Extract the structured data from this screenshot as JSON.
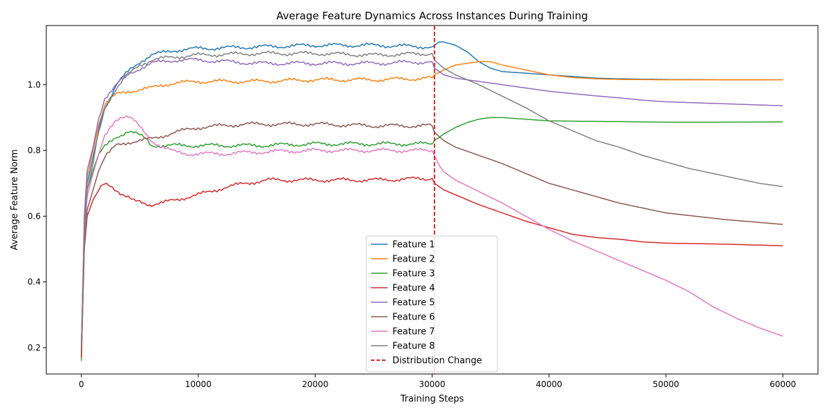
{
  "chart_data": {
    "type": "line",
    "title": "Average Feature Dynamics Across Instances During Training",
    "xlabel": "Training Steps",
    "ylabel": "Average Feature Norm",
    "xlim": [
      -3000,
      63000
    ],
    "ylim": [
      0.12,
      1.18
    ],
    "xticks": [
      0,
      10000,
      20000,
      30000,
      40000,
      50000,
      60000
    ],
    "yticks": [
      0.2,
      0.4,
      0.6,
      0.8,
      1.0
    ],
    "grid": false,
    "legend_position": "lower-center",
    "vline": {
      "x": 30200,
      "label": "Distribution Change",
      "color": "#d62728",
      "style": "dashed"
    },
    "series": [
      {
        "name": "Feature 1",
        "color": "#1f77b4",
        "x": [
          0,
          250,
          500,
          1000,
          1500,
          2000,
          3000,
          4000,
          5000,
          6000,
          8000,
          10000,
          15000,
          20000,
          25000,
          30000,
          30200,
          30600,
          31000,
          32000,
          33000,
          34000,
          35000,
          36000,
          38000,
          40000,
          42000,
          44000,
          46000,
          50000,
          55000,
          60000
        ],
        "y": [
          0.21,
          0.55,
          0.7,
          0.78,
          0.86,
          0.93,
          1.0,
          1.04,
          1.07,
          1.09,
          1.105,
          1.11,
          1.115,
          1.12,
          1.12,
          1.115,
          1.12,
          1.13,
          1.13,
          1.12,
          1.1,
          1.07,
          1.05,
          1.04,
          1.035,
          1.03,
          1.025,
          1.02,
          1.018,
          1.016,
          1.015,
          1.015
        ]
      },
      {
        "name": "Feature 2",
        "color": "#ff7f0e",
        "x": [
          0,
          250,
          500,
          1000,
          1500,
          2000,
          3000,
          4000,
          5000,
          6000,
          7000,
          8000,
          10000,
          15000,
          20000,
          25000,
          30000,
          30200,
          31000,
          32000,
          33000,
          34000,
          35000,
          36000,
          38000,
          40000,
          42000,
          44000,
          46000,
          50000,
          55000,
          60000
        ],
        "y": [
          0.19,
          0.55,
          0.72,
          0.8,
          0.88,
          0.94,
          0.97,
          0.98,
          0.985,
          0.99,
          1.0,
          1.005,
          1.01,
          1.01,
          1.015,
          1.015,
          1.02,
          1.03,
          1.045,
          1.06,
          1.065,
          1.07,
          1.07,
          1.06,
          1.045,
          1.03,
          1.022,
          1.018,
          1.016,
          1.015,
          1.015,
          1.015
        ]
      },
      {
        "name": "Feature 3",
        "color": "#2ca02c",
        "x": [
          0,
          250,
          500,
          1000,
          1500,
          2000,
          3000,
          4000,
          4500,
          5000,
          5500,
          6000,
          8000,
          10000,
          15000,
          20000,
          25000,
          30000,
          30200,
          31000,
          32000,
          33000,
          34000,
          35000,
          36000,
          38000,
          40000,
          45000,
          50000,
          55000,
          60000
        ],
        "y": [
          0.16,
          0.55,
          0.68,
          0.74,
          0.79,
          0.81,
          0.84,
          0.86,
          0.855,
          0.845,
          0.835,
          0.815,
          0.815,
          0.815,
          0.815,
          0.82,
          0.82,
          0.82,
          0.83,
          0.85,
          0.87,
          0.885,
          0.895,
          0.9,
          0.9,
          0.895,
          0.89,
          0.888,
          0.886,
          0.886,
          0.887
        ]
      },
      {
        "name": "Feature 4",
        "color": "#d62728",
        "x": [
          0,
          250,
          500,
          1000,
          1500,
          2000,
          2500,
          3000,
          3500,
          4000,
          4500,
          5000,
          5500,
          6000,
          7000,
          8000,
          10000,
          12000,
          14000,
          16000,
          20000,
          25000,
          30000,
          30200,
          31000,
          32000,
          34000,
          36000,
          38000,
          40000,
          42000,
          44000,
          46000,
          48000,
          50000,
          55000,
          60000
        ],
        "y": [
          0.17,
          0.5,
          0.6,
          0.65,
          0.68,
          0.7,
          0.695,
          0.68,
          0.665,
          0.655,
          0.645,
          0.645,
          0.64,
          0.635,
          0.64,
          0.65,
          0.665,
          0.685,
          0.7,
          0.71,
          0.71,
          0.71,
          0.715,
          0.7,
          0.68,
          0.665,
          0.635,
          0.61,
          0.585,
          0.565,
          0.545,
          0.535,
          0.53,
          0.522,
          0.518,
          0.515,
          0.51
        ]
      },
      {
        "name": "Feature 5",
        "color": "#9467bd",
        "x": [
          0,
          250,
          500,
          1000,
          1500,
          2000,
          3000,
          4000,
          5000,
          6000,
          7000,
          8000,
          10000,
          15000,
          20000,
          25000,
          30000,
          30200,
          31000,
          32000,
          34000,
          36000,
          38000,
          40000,
          42000,
          44000,
          46000,
          48000,
          50000,
          55000,
          60000
        ],
        "y": [
          0.19,
          0.6,
          0.74,
          0.81,
          0.9,
          0.96,
          1.0,
          1.03,
          1.05,
          1.065,
          1.07,
          1.075,
          1.075,
          1.065,
          1.065,
          1.065,
          1.07,
          1.05,
          1.03,
          1.02,
          1.01,
          1.0,
          0.99,
          0.98,
          0.973,
          0.966,
          0.96,
          0.953,
          0.948,
          0.942,
          0.936
        ]
      },
      {
        "name": "Feature 6",
        "color": "#8c564b",
        "x": [
          0,
          250,
          500,
          1000,
          1500,
          2000,
          3000,
          4000,
          5000,
          6000,
          7000,
          8000,
          10000,
          12000,
          14000,
          16000,
          20000,
          25000,
          30000,
          30200,
          31000,
          32000,
          34000,
          36000,
          38000,
          40000,
          42000,
          44000,
          46000,
          48000,
          50000,
          55000,
          60000
        ],
        "y": [
          0.18,
          0.5,
          0.62,
          0.68,
          0.74,
          0.78,
          0.815,
          0.825,
          0.83,
          0.835,
          0.845,
          0.855,
          0.87,
          0.875,
          0.88,
          0.88,
          0.88,
          0.875,
          0.875,
          0.855,
          0.83,
          0.81,
          0.785,
          0.76,
          0.73,
          0.7,
          0.68,
          0.66,
          0.64,
          0.625,
          0.61,
          0.59,
          0.575
        ]
      },
      {
        "name": "Feature 7",
        "color": "#e377c2",
        "x": [
          0,
          250,
          500,
          1000,
          1500,
          2000,
          2500,
          3000,
          3500,
          4000,
          4500,
          5000,
          5500,
          6000,
          7000,
          8000,
          9000,
          10000,
          12000,
          15000,
          20000,
          25000,
          30000,
          30200,
          30600,
          31000,
          32000,
          34000,
          36000,
          38000,
          40000,
          42000,
          44000,
          46000,
          48000,
          50000,
          52000,
          54000,
          56000,
          58000,
          60000
        ],
        "y": [
          0.22,
          0.55,
          0.66,
          0.73,
          0.79,
          0.84,
          0.87,
          0.895,
          0.905,
          0.905,
          0.89,
          0.87,
          0.85,
          0.83,
          0.81,
          0.795,
          0.79,
          0.79,
          0.79,
          0.795,
          0.8,
          0.8,
          0.8,
          0.785,
          0.755,
          0.735,
          0.71,
          0.675,
          0.64,
          0.6,
          0.56,
          0.525,
          0.495,
          0.465,
          0.435,
          0.405,
          0.37,
          0.325,
          0.29,
          0.26,
          0.235
        ]
      },
      {
        "name": "Feature 8",
        "color": "#7f7f7f",
        "x": [
          0,
          250,
          500,
          1000,
          1500,
          2000,
          3000,
          4000,
          5000,
          6000,
          7000,
          8000,
          10000,
          15000,
          20000,
          25000,
          30000,
          30200,
          31000,
          32000,
          34000,
          36000,
          38000,
          40000,
          42000,
          44000,
          46000,
          48000,
          50000,
          52000,
          54000,
          56000,
          58000,
          60000
        ],
        "y": [
          0.21,
          0.55,
          0.68,
          0.76,
          0.87,
          0.93,
          0.99,
          1.03,
          1.06,
          1.075,
          1.08,
          1.085,
          1.09,
          1.095,
          1.095,
          1.09,
          1.095,
          1.075,
          1.05,
          1.03,
          1.0,
          0.965,
          0.93,
          0.89,
          0.86,
          0.83,
          0.81,
          0.785,
          0.765,
          0.745,
          0.73,
          0.715,
          0.7,
          0.69
        ]
      }
    ]
  }
}
